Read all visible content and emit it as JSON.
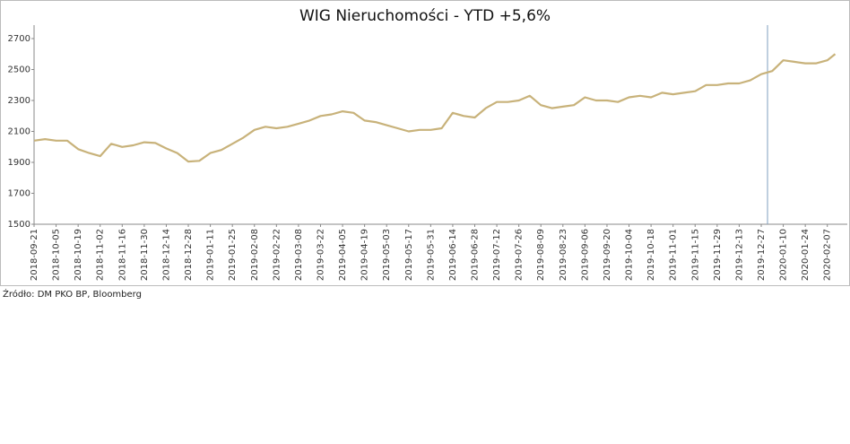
{
  "chart_data": {
    "type": "line",
    "title": "WIG Nieruchomości - YTD +5,6%",
    "source": "Źródło: DM PKO BP, Bloomberg",
    "x": [
      "2018-09-21",
      "2018-09-28",
      "2018-10-05",
      "2018-10-12",
      "2018-10-19",
      "2018-10-26",
      "2018-11-02",
      "2018-11-09",
      "2018-11-16",
      "2018-11-23",
      "2018-11-30",
      "2018-12-07",
      "2018-12-14",
      "2018-12-21",
      "2018-12-28",
      "2019-01-04",
      "2019-01-11",
      "2019-01-18",
      "2019-01-25",
      "2019-02-01",
      "2019-02-08",
      "2019-02-15",
      "2019-02-22",
      "2019-03-01",
      "2019-03-08",
      "2019-03-15",
      "2019-03-22",
      "2019-03-29",
      "2019-04-05",
      "2019-04-12",
      "2019-04-19",
      "2019-04-26",
      "2019-05-03",
      "2019-05-10",
      "2019-05-17",
      "2019-05-24",
      "2019-05-31",
      "2019-06-07",
      "2019-06-14",
      "2019-06-21",
      "2019-06-28",
      "2019-07-05",
      "2019-07-12",
      "2019-07-19",
      "2019-07-26",
      "2019-08-02",
      "2019-08-09",
      "2019-08-16",
      "2019-08-23",
      "2019-08-30",
      "2019-09-06",
      "2019-09-13",
      "2019-09-20",
      "2019-09-27",
      "2019-10-04",
      "2019-10-11",
      "2019-10-18",
      "2019-10-25",
      "2019-11-01",
      "2019-11-08",
      "2019-11-15",
      "2019-11-22",
      "2019-11-29",
      "2019-12-06",
      "2019-12-13",
      "2019-12-20",
      "2019-12-27",
      "2020-01-03",
      "2020-01-10",
      "2020-01-17",
      "2020-01-24",
      "2020-01-31",
      "2020-02-07",
      "2020-02-12"
    ],
    "series": [
      {
        "color": "#c8b27a",
        "values": [
          2040,
          2050,
          2040,
          2040,
          1985,
          1960,
          1940,
          2020,
          2000,
          2010,
          2030,
          2025,
          1990,
          1960,
          1905,
          1910,
          1960,
          1980,
          2020,
          2060,
          2110,
          2130,
          2120,
          2130,
          2150,
          2170,
          2200,
          2210,
          2230,
          2220,
          2170,
          2160,
          2140,
          2120,
          2100,
          2110,
          2110,
          2120,
          2220,
          2200,
          2190,
          2250,
          2290,
          2290,
          2300,
          2330,
          2270,
          2250,
          2260,
          2270,
          2320,
          2300,
          2300,
          2290,
          2320,
          2330,
          2320,
          2350,
          2340,
          2350,
          2360,
          2400,
          2400,
          2410,
          2410,
          2430,
          2470,
          2490,
          2560,
          2550,
          2540,
          2540,
          2560,
          2600
        ]
      }
    ],
    "xlim": [
      "2018-09-21",
      "2020-02-14"
    ],
    "xticks": [
      "2018-09-21",
      "2018-10-05",
      "2018-10-19",
      "2018-11-02",
      "2018-11-16",
      "2018-11-30",
      "2018-12-14",
      "2018-12-28",
      "2019-01-11",
      "2019-01-25",
      "2019-02-08",
      "2019-02-22",
      "2019-03-08",
      "2019-03-22",
      "2019-04-05",
      "2019-04-19",
      "2019-05-03",
      "2019-05-17",
      "2019-05-31",
      "2019-06-14",
      "2019-06-28",
      "2019-07-12",
      "2019-07-26",
      "2019-08-09",
      "2019-08-23",
      "2019-09-06",
      "2019-09-20",
      "2019-10-04",
      "2019-10-18",
      "2019-11-01",
      "2019-11-15",
      "2019-11-29",
      "2019-12-13",
      "2019-12-27",
      "2020-01-10",
      "2020-01-24",
      "2020-02-07"
    ],
    "ylim": [
      1500,
      2700
    ],
    "yticks": [
      1500,
      1700,
      1900,
      2100,
      2300,
      2500,
      2700
    ],
    "vline": "2019-12-31",
    "vline_color": "#7f9fbf"
  }
}
